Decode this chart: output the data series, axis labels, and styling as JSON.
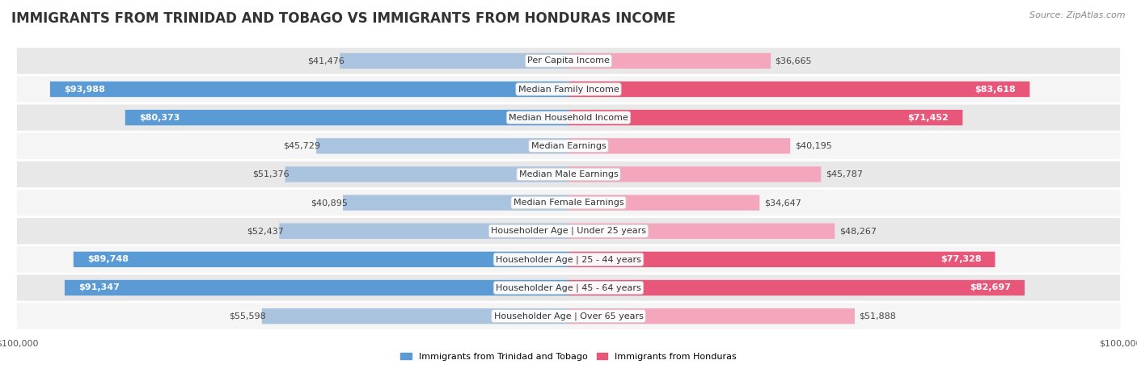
{
  "title": "IMMIGRANTS FROM TRINIDAD AND TOBAGO VS IMMIGRANTS FROM HONDURAS INCOME",
  "source": "Source: ZipAtlas.com",
  "categories": [
    "Per Capita Income",
    "Median Family Income",
    "Median Household Income",
    "Median Earnings",
    "Median Male Earnings",
    "Median Female Earnings",
    "Householder Age | Under 25 years",
    "Householder Age | 25 - 44 years",
    "Householder Age | 45 - 64 years",
    "Householder Age | Over 65 years"
  ],
  "trinidad_values": [
    41476,
    93988,
    80373,
    45729,
    51376,
    40895,
    52437,
    89748,
    91347,
    55598
  ],
  "honduras_values": [
    36665,
    83618,
    71452,
    40195,
    45787,
    34647,
    48267,
    77328,
    82697,
    51888
  ],
  "trinidad_color_light": "#aac4e0",
  "trinidad_color_dark": "#5b9bd5",
  "honduras_color_light": "#f4a7bc",
  "honduras_color_dark": "#e8577a",
  "max_value": 100000,
  "background_color": "#ffffff",
  "row_bg_odd": "#e8e8e8",
  "row_bg_even": "#f5f5f5",
  "legend_trinidad": "Immigrants from Trinidad and Tobago",
  "legend_honduras": "Immigrants from Honduras",
  "title_fontsize": 12,
  "label_fontsize": 8,
  "tick_fontsize": 8,
  "source_fontsize": 8,
  "inside_label_threshold": 60000
}
